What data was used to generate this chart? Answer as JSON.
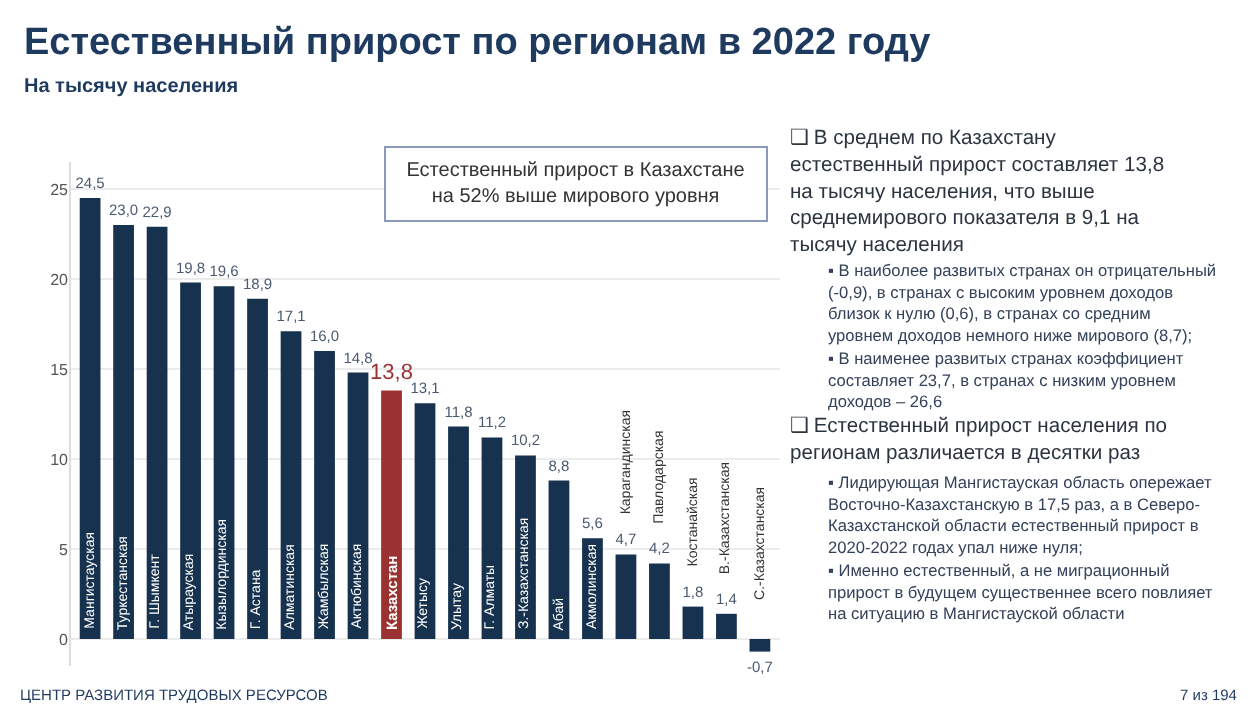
{
  "chart_data": {
    "type": "bar",
    "title": "Естественный прирост по регионам в 2022 году",
    "subtitle": "На тысячу населения",
    "categories": [
      "Мангистауская",
      "Туркестанская",
      "Г. Шымкент",
      "Атырауская",
      "Кызылординская",
      "Г. Астана",
      "Алматинская",
      "Жамбылская",
      "Актюбинская",
      "Казахстан",
      "Жетысу",
      "Улытау",
      "Г. Алматы",
      "З.-Казахстанская",
      "Абай",
      "Акмолинская",
      "Карагандинская",
      "Павлодарская",
      "Костанайская",
      "В.-Казахстанская",
      "С.-Казахстанская"
    ],
    "values": [
      24.5,
      23.0,
      22.9,
      19.8,
      19.6,
      18.9,
      17.1,
      16.0,
      14.8,
      13.8,
      13.1,
      11.8,
      11.2,
      10.2,
      8.8,
      5.6,
      4.7,
      4.2,
      1.8,
      1.4,
      -0.7
    ],
    "value_labels": [
      "24,5",
      "23,0",
      "22,9",
      "19,8",
      "19,6",
      "18,9",
      "17,1",
      "16,0",
      "14,8",
      "13,8",
      "13,1",
      "11,8",
      "11,2",
      "10,2",
      "8,8",
      "5,6",
      "4,7",
      "4,2",
      "1,8",
      "1,4",
      "-0,7"
    ],
    "colors": [
      "#17324f",
      "#17324f",
      "#17324f",
      "#17324f",
      "#17324f",
      "#17324f",
      "#17324f",
      "#17324f",
      "#17324f",
      "#9b3232",
      "#17324f",
      "#17324f",
      "#17324f",
      "#17324f",
      "#17324f",
      "#17324f",
      "#17324f",
      "#17324f",
      "#17324f",
      "#17324f",
      "#17324f"
    ],
    "ylim": [
      -1.5,
      26.5
    ],
    "yticks": [
      0,
      5,
      10,
      15,
      20,
      25
    ],
    "grid": "y",
    "annotations": [
      "Естественный прирост в Казахстане на 52% выше мирового уровня",
      "❑ В среднем по Казахстану естественный прирост составляет 13,8 на тысячу населения, что выше среднемирового показателя в 9,1 на тысячу населения",
      "▪ В наиболее развитых странах он отрицательный (-0,9), в странах с высоким уровнем доходов близок к нулю (0,6), в странах со средним уровнем доходов немного ниже мирового (8,7);",
      "▪ В наименее развитых странах коэффициент составляет 23,7, в странах с низким уровнем доходов – 26,6",
      "❑ Естественный прирост населения по регионам различается в десятки раз",
      "▪ Лидирующая Мангистауская область опережает Восточно-Казахстанскую в 17,5 раз, а в Северо-Казахстанской области естественный прирост в 2020-2022 годах упал ниже нуля;",
      "▪ Именно естественный, а не миграционный прирост в будущем существеннее всего повлияет на ситуацию в Мангистауской области",
      "ЦЕНТР РАЗВИТИЯ ТРУДОВЫХ РЕСУРСОВ",
      "7 из 194"
    ]
  }
}
